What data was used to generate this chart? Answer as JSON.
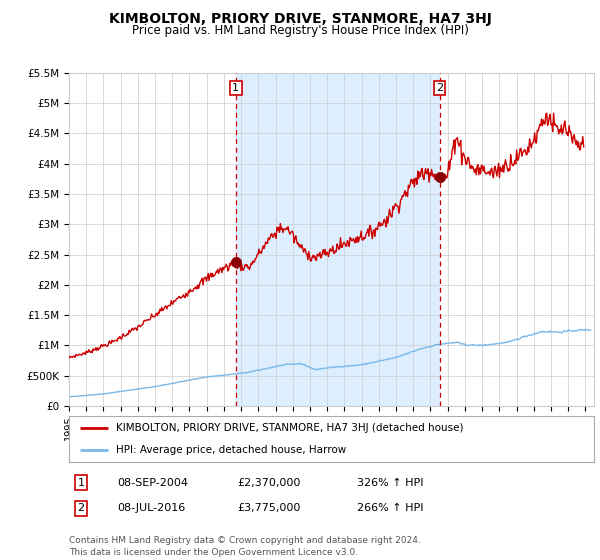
{
  "title": "KIMBOLTON, PRIORY DRIVE, STANMORE, HA7 3HJ",
  "subtitle": "Price paid vs. HM Land Registry's House Price Index (HPI)",
  "background_color": "#ffffff",
  "plot_bg_color": "#ffffff",
  "plot_fill_color": "#ddeeff",
  "grid_color": "#cccccc",
  "hpi_color": "#7ab8e8",
  "price_color": "#cc0000",
  "dashed_line_color": "#cc0000",
  "marker1_x": 2004.69,
  "marker1_y": 2370000,
  "marker1_label": "1",
  "marker2_x": 2016.53,
  "marker2_y": 3775000,
  "marker2_label": "2",
  "annotation1": [
    "1",
    "08-SEP-2004",
    "£2,370,000",
    "326% ↑ HPI"
  ],
  "annotation2": [
    "2",
    "08-JUL-2016",
    "£3,775,000",
    "266% ↑ HPI"
  ],
  "ylim": [
    0,
    5500000
  ],
  "yticks": [
    0,
    500000,
    1000000,
    1500000,
    2000000,
    2500000,
    3000000,
    3500000,
    4000000,
    4500000,
    5000000,
    5500000
  ],
  "ytick_labels": [
    "£0",
    "£500K",
    "£1M",
    "£1.5M",
    "£2M",
    "£2.5M",
    "£3M",
    "£3.5M",
    "£4M",
    "£4.5M",
    "£5M",
    "£5.5M"
  ],
  "xlim_start": 1995.0,
  "xlim_end": 2025.5,
  "legend_line1": "KIMBOLTON, PRIORY DRIVE, STANMORE, HA7 3HJ (detached house)",
  "legend_line2": "HPI: Average price, detached house, Harrow",
  "footnote": "Contains HM Land Registry data © Crown copyright and database right 2024.\nThis data is licensed under the Open Government Licence v3.0."
}
